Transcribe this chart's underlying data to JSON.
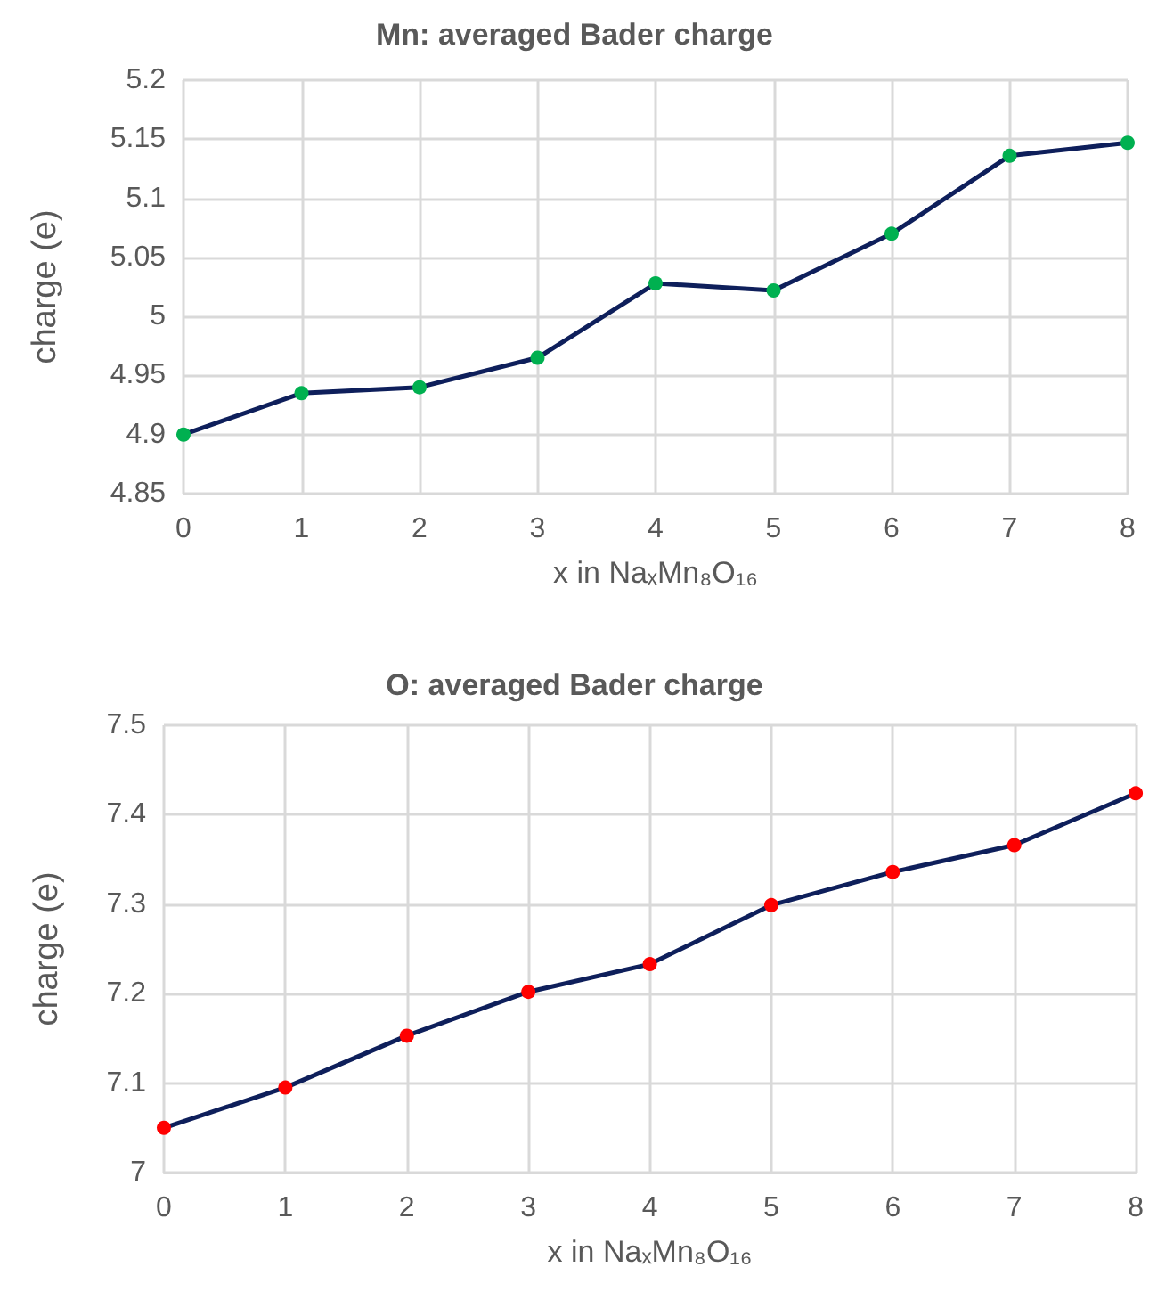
{
  "chart_data": [
    {
      "type": "line",
      "title": "Mn: averaged Bader charge",
      "xlabel": "x in NaₓMn₈O₁₆",
      "ylabel": "charge (e)",
      "x": [
        0,
        1,
        2,
        3,
        4,
        5,
        6,
        7,
        8
      ],
      "series": [
        {
          "color": "#0e1f5b",
          "colors": [
            "#00b050",
            "#00b050",
            "#00b050",
            "#00b050",
            "#00b050",
            "#00b050",
            "#00b050",
            "#00b050",
            "#00b050"
          ],
          "values": [
            4.9,
            4.935,
            4.94,
            4.965,
            5.028,
            5.022,
            5.07,
            5.136,
            5.147
          ]
        }
      ],
      "xlim": [
        0,
        8
      ],
      "xticks": [
        0,
        1,
        2,
        3,
        4,
        5,
        6,
        7,
        8
      ],
      "ylim": [
        4.85,
        5.2
      ],
      "yticks": [
        4.85,
        4.9,
        4.95,
        5,
        5.05,
        5.1,
        5.15,
        5.2
      ],
      "grid": true,
      "marker": "circle",
      "line_style": "solid"
    },
    {
      "type": "line",
      "title": "O: averaged Bader charge",
      "xlabel": "x in NaₓMn₈O₁₆",
      "ylabel": "charge (e)",
      "x": [
        0,
        1,
        2,
        3,
        4,
        5,
        6,
        7,
        8
      ],
      "series": [
        {
          "color": "#0e1f5b",
          "colors": [
            "#ff0000",
            "#ff0000",
            "#ff0000",
            "#ff0000",
            "#ff0000",
            "#ff0000",
            "#ff0000",
            "#ff0000",
            "#ff0000"
          ],
          "values": [
            7.05,
            7.095,
            7.153,
            7.202,
            7.233,
            7.299,
            7.336,
            7.366,
            7.424
          ]
        }
      ],
      "xlim": [
        0,
        8
      ],
      "xticks": [
        0,
        1,
        2,
        3,
        4,
        5,
        6,
        7,
        8
      ],
      "ylim": [
        7,
        7.5
      ],
      "yticks": [
        7,
        7.1,
        7.2,
        7.3,
        7.4,
        7.5
      ],
      "grid": true,
      "marker": "circle",
      "line_style": "solid"
    }
  ]
}
